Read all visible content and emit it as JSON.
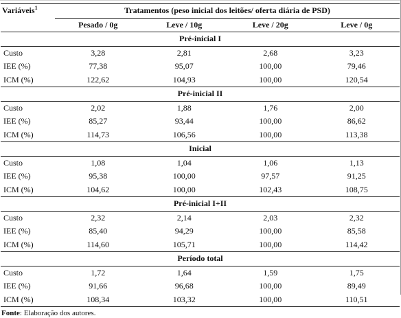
{
  "table": {
    "variables_header": "Variáveis",
    "variables_sup": "1",
    "treatments_header": "Tratamentos (peso inicial dos leitões/ oferta diária de PSD)",
    "columns": [
      "Pesado / 0g",
      "Leve / 10g",
      "Leve / 20g",
      "Leve / 0g"
    ],
    "sections": [
      {
        "title": "Pré-inicial I",
        "rows": [
          {
            "label": "Custo",
            "values": [
              "3,28",
              "2,81",
              "2,68",
              "3,23"
            ]
          },
          {
            "label": "IEE (%)",
            "values": [
              "77,38",
              "95,07",
              "100,00",
              "79,46"
            ]
          },
          {
            "label": "ICM (%)",
            "values": [
              "122,62",
              "104,93",
              "100,00",
              "120,54"
            ]
          }
        ]
      },
      {
        "title": "Pré-inicial II",
        "rows": [
          {
            "label": "Custo",
            "values": [
              "2,02",
              "1,88",
              "1,76",
              "2,00"
            ]
          },
          {
            "label": "IEE (%)",
            "values": [
              "85,27",
              "93,44",
              "100,00",
              "86,62"
            ]
          },
          {
            "label": "ICM (%)",
            "values": [
              "114,73",
              "106,56",
              "100,00",
              "113,38"
            ]
          }
        ]
      },
      {
        "title": "Inicial",
        "rows": [
          {
            "label": "Custo",
            "values": [
              "1,08",
              "1,04",
              "1,06",
              "1,13"
            ]
          },
          {
            "label": "IEE (%)",
            "values": [
              "95,38",
              "100,00",
              "97,57",
              "91,25"
            ]
          },
          {
            "label": "ICM (%)",
            "values": [
              "104,62",
              "100,00",
              "102,43",
              "108,75"
            ]
          }
        ]
      },
      {
        "title": "Pré-inicial I+II",
        "rows": [
          {
            "label": "Custo",
            "values": [
              "2,32",
              "2,14",
              "2,03",
              "2,32"
            ]
          },
          {
            "label": "IEE (%)",
            "values": [
              "85,40",
              "94,29",
              "100,00",
              "85,58"
            ]
          },
          {
            "label": "ICM (%)",
            "values": [
              "114,60",
              "105,71",
              "100,00",
              "114,42"
            ]
          }
        ]
      },
      {
        "title": "Período total",
        "rows": [
          {
            "label": "Custo",
            "values": [
              "1,72",
              "1,64",
              "1,59",
              "1,75"
            ]
          },
          {
            "label": "IEE (%)",
            "values": [
              "91,66",
              "96,68",
              "100,00",
              "89,49"
            ]
          },
          {
            "label": "ICM (%)",
            "values": [
              "108,34",
              "103,32",
              "100,00",
              "110,51"
            ]
          }
        ]
      }
    ]
  },
  "source": {
    "label": "Fonte",
    "text": ": Elaboração dos autores."
  }
}
